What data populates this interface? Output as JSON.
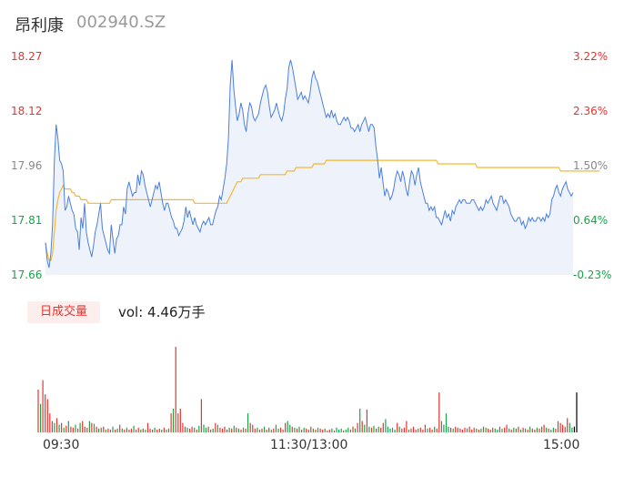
{
  "header": {
    "name": "昂利康",
    "code": "002940.SZ"
  },
  "price_axis": [
    "18.27",
    "18.12",
    "17.96",
    "17.81",
    "17.66"
  ],
  "pct_axis": [
    "3.22%",
    "2.36%",
    "1.50%",
    "0.64%",
    "-0.23%"
  ],
  "volume": {
    "badge": "日成交量",
    "label": "vol: 4.46万手"
  },
  "time_axis": [
    "09:30",
    "11:30/13:00",
    "15:00"
  ],
  "colors": {
    "up": "#e8332f",
    "down": "#1aa34a",
    "price_line": "#4a7fe0",
    "avg_line": "#f5b731",
    "area": "#eef3fb",
    "neutral": "#888888"
  },
  "chart_data": [
    {
      "type": "line",
      "xlabel": "",
      "ylabel": "",
      "ylim": [
        17.66,
        18.27
      ],
      "y2lim": [
        -0.23,
        3.22
      ],
      "grid": false,
      "x_ticks": [
        "09:30",
        "11:30/13:00",
        "15:00"
      ],
      "y_ticks": [
        18.27,
        18.12,
        17.96,
        17.81,
        17.66
      ],
      "y2_ticks": [
        "3.22%",
        "2.36%",
        "1.50%",
        "0.64%",
        "-0.23%"
      ],
      "series": [
        {
          "role": "price",
          "values": [
            17.75,
            17.7,
            17.68,
            17.72,
            17.8,
            17.98,
            18.08,
            18.04,
            17.98,
            17.97,
            17.95,
            17.84,
            17.85,
            17.88,
            17.86,
            17.84,
            17.83,
            17.79,
            17.78,
            17.73,
            17.82,
            17.79,
            17.86,
            17.78,
            17.75,
            17.73,
            17.71,
            17.74,
            17.78,
            17.8,
            17.83,
            17.86,
            17.79,
            17.77,
            17.75,
            17.73,
            17.72,
            17.8,
            17.76,
            17.72,
            17.76,
            17.77,
            17.8,
            17.8,
            17.85,
            17.83,
            17.9,
            17.92,
            17.9,
            17.88,
            17.89,
            17.89,
            17.94,
            17.91,
            17.95,
            17.94,
            17.91,
            17.89,
            17.87,
            17.85,
            17.87,
            17.89,
            17.91,
            17.9,
            17.92,
            17.89,
            17.86,
            17.84,
            17.86,
            17.86,
            17.84,
            17.82,
            17.81,
            17.79,
            17.79,
            17.77,
            17.78,
            17.79,
            17.81,
            17.85,
            17.82,
            17.84,
            17.82,
            17.8,
            17.82,
            17.8,
            17.79,
            17.78,
            17.8,
            17.81,
            17.8,
            17.81,
            17.82,
            17.8,
            17.8,
            17.82,
            17.84,
            17.85,
            17.88,
            17.87,
            17.9,
            17.93,
            17.97,
            18.04,
            18.19,
            18.26,
            18.18,
            18.13,
            18.09,
            18.11,
            18.14,
            18.12,
            18.08,
            18.06,
            18.11,
            18.14,
            18.13,
            18.1,
            18.09,
            18.1,
            18.11,
            18.14,
            18.16,
            18.18,
            18.19,
            18.17,
            18.13,
            18.1,
            18.11,
            18.12,
            18.14,
            18.12,
            18.1,
            18.09,
            18.11,
            18.15,
            18.18,
            18.24,
            18.26,
            18.24,
            18.21,
            18.18,
            18.15,
            18.16,
            18.17,
            18.15,
            18.16,
            18.15,
            18.14,
            18.17,
            18.21,
            18.23,
            18.21,
            18.2,
            18.18,
            18.16,
            18.14,
            18.12,
            18.1,
            18.11,
            18.1,
            18.12,
            18.1,
            18.11,
            18.09,
            18.08,
            18.08,
            18.09,
            18.1,
            18.09,
            18.1,
            18.09,
            18.07,
            18.07,
            18.06,
            18.07,
            18.08,
            18.06,
            18.08,
            18.09,
            18.1,
            18.08,
            18.06,
            18.08,
            18.08,
            18.07,
            18.02,
            17.98,
            17.93,
            17.96,
            17.92,
            17.88,
            17.9,
            17.89,
            17.87,
            17.88,
            17.9,
            17.93,
            17.95,
            17.94,
            17.92,
            17.95,
            17.93,
            17.9,
            17.88,
            17.92,
            17.95,
            17.94,
            17.91,
            17.94,
            17.96,
            17.92,
            17.9,
            17.88,
            17.86,
            17.86,
            17.84,
            17.85,
            17.84,
            17.85,
            17.82,
            17.82,
            17.81,
            17.8,
            17.82,
            17.84,
            17.82,
            17.83,
            17.81,
            17.84,
            17.83,
            17.85,
            17.86,
            17.87,
            17.86,
            17.87,
            17.87,
            17.86,
            17.86,
            17.86,
            17.87,
            17.87,
            17.86,
            17.85,
            17.84,
            17.85,
            17.84,
            17.85,
            17.87,
            17.86,
            17.87,
            17.88,
            17.86,
            17.85,
            17.84,
            17.86,
            17.88,
            17.88,
            17.86,
            17.87,
            17.86,
            17.85,
            17.83,
            17.82,
            17.81,
            17.81,
            17.82,
            17.82,
            17.8,
            17.81,
            17.79,
            17.8,
            17.82,
            17.81,
            17.82,
            17.81,
            17.81,
            17.82,
            17.82,
            17.81,
            17.82,
            17.81,
            17.83,
            17.82,
            17.83,
            17.87,
            17.88,
            17.9,
            17.91,
            17.89,
            17.88,
            17.9,
            17.91,
            17.92,
            17.9,
            17.89,
            17.88,
            17.89
          ],
          "color": "#4a7fe0"
        },
        {
          "role": "average",
          "values": [
            17.75,
            17.72,
            17.7,
            17.7,
            17.72,
            17.78,
            17.84,
            17.87,
            17.89,
            17.9,
            17.91,
            17.9,
            17.9,
            17.9,
            17.9,
            17.89,
            17.89,
            17.88,
            17.88,
            17.88,
            17.87,
            17.87,
            17.87,
            17.87,
            17.86,
            17.86,
            17.86,
            17.86,
            17.86,
            17.86,
            17.86,
            17.86,
            17.86,
            17.86,
            17.86,
            17.86,
            17.86,
            17.87,
            17.87,
            17.87,
            17.87,
            17.87,
            17.87,
            17.87,
            17.87,
            17.87,
            17.87,
            17.87,
            17.87,
            17.87,
            17.87,
            17.87,
            17.87,
            17.87,
            17.87,
            17.87,
            17.87,
            17.87,
            17.87,
            17.87,
            17.87,
            17.87,
            17.87,
            17.87,
            17.87,
            17.87,
            17.87,
            17.87,
            17.87,
            17.87,
            17.87,
            17.87,
            17.87,
            17.87,
            17.87,
            17.87,
            17.87,
            17.87,
            17.87,
            17.87,
            17.87,
            17.87,
            17.87,
            17.87,
            17.86,
            17.86,
            17.86,
            17.86,
            17.86,
            17.86,
            17.86,
            17.86,
            17.86,
            17.86,
            17.86,
            17.86,
            17.86,
            17.86,
            17.86,
            17.86,
            17.86,
            17.86,
            17.86,
            17.87,
            17.88,
            17.89,
            17.9,
            17.91,
            17.92,
            17.92,
            17.92,
            17.93,
            17.93,
            17.93,
            17.93,
            17.93,
            17.93,
            17.93,
            17.93,
            17.93,
            17.93,
            17.94,
            17.94,
            17.94,
            17.94,
            17.94,
            17.94,
            17.94,
            17.94,
            17.94,
            17.94,
            17.94,
            17.94,
            17.94,
            17.94,
            17.94,
            17.95,
            17.95,
            17.95,
            17.95,
            17.95,
            17.96,
            17.96,
            17.96,
            17.96,
            17.96,
            17.96,
            17.96,
            17.96,
            17.96,
            17.96,
            17.97,
            17.97,
            17.97,
            17.97,
            17.97,
            17.97,
            17.97,
            17.98,
            17.98,
            17.98,
            17.98,
            17.98,
            17.98,
            17.98,
            17.98,
            17.98,
            17.98,
            17.98,
            17.98,
            17.98,
            17.98,
            17.98,
            17.98,
            17.98,
            17.98,
            17.98,
            17.98,
            17.98,
            17.98,
            17.98,
            17.98,
            17.98,
            17.98,
            17.98,
            17.98,
            17.98,
            17.98,
            17.98,
            17.98,
            17.98,
            17.98,
            17.98,
            17.98,
            17.98,
            17.98,
            17.98,
            17.98,
            17.98,
            17.98,
            17.98,
            17.98,
            17.98,
            17.98,
            17.98,
            17.98,
            17.98,
            17.98,
            17.98,
            17.98,
            17.98,
            17.98,
            17.98,
            17.98,
            17.98,
            17.98,
            17.98,
            17.98,
            17.98,
            17.98,
            17.98,
            17.97,
            17.97,
            17.97,
            17.97,
            17.97,
            17.97,
            17.97,
            17.97,
            17.97,
            17.97,
            17.97,
            17.97,
            17.97,
            17.97,
            17.97,
            17.97,
            17.97,
            17.97,
            17.97,
            17.97,
            17.97,
            17.97,
            17.96,
            17.96,
            17.96,
            17.96,
            17.96,
            17.96,
            17.96,
            17.96,
            17.96,
            17.96,
            17.96,
            17.96,
            17.96,
            17.96,
            17.96,
            17.96,
            17.96,
            17.96,
            17.96,
            17.96,
            17.96,
            17.96,
            17.96,
            17.96,
            17.96,
            17.96,
            17.96,
            17.96,
            17.96,
            17.96,
            17.96,
            17.96,
            17.96,
            17.96,
            17.96,
            17.96,
            17.96,
            17.96,
            17.96,
            17.96,
            17.96,
            17.96,
            17.96,
            17.96,
            17.96,
            17.96,
            17.96,
            17.95,
            17.95,
            17.95,
            17.95,
            17.95,
            17.95,
            17.95,
            17.95,
            17.95,
            17.95,
            17.95,
            17.95,
            17.95,
            17.95,
            17.95,
            17.95,
            17.95,
            17.95,
            17.95,
            17.95,
            17.95,
            17.95,
            17.95
          ],
          "color": "#f5b731"
        }
      ]
    },
    {
      "type": "bar",
      "title": "日成交量",
      "values": [
        0.45,
        0.3,
        0.55,
        0.4,
        0.35,
        0.2,
        0.12,
        0.1,
        0.15,
        0.08,
        0.1,
        0.05,
        0.07,
        0.12,
        0.06,
        0.05,
        0.08,
        0.04,
        0.1,
        0.12,
        0.06,
        0.05,
        0.12,
        0.1,
        0.09,
        0.06,
        0.04,
        0.05,
        0.06,
        0.03,
        0.04,
        0.03,
        0.06,
        0.03,
        0.04,
        0.08,
        0.04,
        0.03,
        0.05,
        0.03,
        0.04,
        0.07,
        0.03,
        0.05,
        0.03,
        0.04,
        0.03,
        0.1,
        0.04,
        0.03,
        0.05,
        0.03,
        0.04,
        0.03,
        0.05,
        0.03,
        0.04,
        0.2,
        0.25,
        0.9,
        0.2,
        0.25,
        0.1,
        0.06,
        0.05,
        0.04,
        0.06,
        0.05,
        0.03,
        0.07,
        0.35,
        0.08,
        0.05,
        0.06,
        0.03,
        0.04,
        0.1,
        0.08,
        0.05,
        0.04,
        0.06,
        0.03,
        0.05,
        0.04,
        0.07,
        0.05,
        0.04,
        0.03,
        0.05,
        0.04,
        0.2,
        0.1,
        0.08,
        0.04,
        0.05,
        0.03,
        0.04,
        0.06,
        0.03,
        0.05,
        0.03,
        0.04,
        0.08,
        0.04,
        0.05,
        0.03,
        0.1,
        0.12,
        0.08,
        0.06,
        0.05,
        0.04,
        0.06,
        0.03,
        0.05,
        0.04,
        0.03,
        0.06,
        0.04,
        0.03,
        0.05,
        0.04,
        0.03,
        0.04,
        0.02,
        0.03,
        0.04,
        0.02,
        0.05,
        0.03,
        0.04,
        0.02,
        0.03,
        0.05,
        0.03,
        0.06,
        0.04,
        0.1,
        0.25,
        0.12,
        0.08,
        0.24,
        0.06,
        0.05,
        0.07,
        0.04,
        0.06,
        0.05,
        0.1,
        0.14,
        0.06,
        0.04,
        0.05,
        0.03,
        0.1,
        0.06,
        0.04,
        0.05,
        0.12,
        0.03,
        0.04,
        0.06,
        0.03,
        0.04,
        0.05,
        0.03,
        0.08,
        0.04,
        0.05,
        0.03,
        0.06,
        0.04,
        0.42,
        0.12,
        0.08,
        0.2,
        0.06,
        0.05,
        0.04,
        0.06,
        0.05,
        0.04,
        0.03,
        0.05,
        0.04,
        0.06,
        0.03,
        0.05,
        0.04,
        0.03,
        0.04,
        0.06,
        0.05,
        0.04,
        0.03,
        0.05,
        0.04,
        0.03,
        0.06,
        0.04,
        0.05,
        0.08,
        0.04,
        0.03,
        0.05,
        0.04,
        0.06,
        0.03,
        0.05,
        0.04,
        0.03,
        0.06,
        0.04,
        0.03,
        0.05,
        0.04,
        0.06,
        0.08,
        0.05,
        0.04,
        0.03,
        0.05,
        0.04,
        0.12,
        0.1,
        0.08,
        0.06,
        0.15,
        0.1,
        0.05,
        0.06,
        0.42
      ],
      "colors": [
        "up",
        "down",
        "up",
        "up",
        "up",
        "up",
        "up",
        "down",
        "up",
        "down",
        "up",
        "down",
        "up",
        "down",
        "up",
        "up",
        "down",
        "up",
        "down",
        "up",
        "up",
        "up",
        "down",
        "up",
        "down",
        "up",
        "down",
        "up",
        "up",
        "down",
        "up",
        "up",
        "down",
        "up",
        "down",
        "up",
        "down",
        "up",
        "down",
        "up",
        "up",
        "down",
        "up",
        "up",
        "down",
        "up",
        "down",
        "up",
        "up",
        "up",
        "down",
        "up",
        "up",
        "down",
        "up",
        "down",
        "up",
        "up",
        "down",
        "up",
        "up",
        "up",
        "up",
        "up",
        "down",
        "up",
        "up",
        "down",
        "up",
        "down",
        "up",
        "down",
        "down",
        "up",
        "up",
        "down",
        "up",
        "down",
        "up",
        "up",
        "up",
        "up",
        "down",
        "up",
        "down",
        "up",
        "down",
        "up",
        "down",
        "up",
        "down",
        "up",
        "up",
        "up",
        "down",
        "up",
        "up",
        "down",
        "up",
        "up",
        "down",
        "up",
        "down",
        "down",
        "up",
        "up",
        "up",
        "down",
        "down",
        "up",
        "down",
        "up",
        "down",
        "up",
        "down",
        "up",
        "up",
        "up",
        "down",
        "up",
        "down",
        "up",
        "up",
        "down",
        "up",
        "up",
        "down",
        "up",
        "down",
        "down",
        "down",
        "up",
        "down",
        "down",
        "up",
        "up",
        "down",
        "up",
        "down",
        "up",
        "down",
        "up",
        "down",
        "up",
        "down",
        "up",
        "down",
        "up",
        "up",
        "down",
        "down",
        "down",
        "down",
        "down",
        "up",
        "down",
        "up",
        "up",
        "up",
        "down",
        "up",
        "up",
        "up",
        "down",
        "up",
        "up",
        "up",
        "down",
        "up",
        "up",
        "down",
        "up",
        "up",
        "down",
        "down",
        "down",
        "down",
        "up",
        "down",
        "up",
        "up",
        "up",
        "up",
        "up",
        "down",
        "up",
        "up",
        "up",
        "down",
        "up",
        "down",
        "up",
        "down",
        "up",
        "up",
        "up",
        "down",
        "down",
        "up",
        "down",
        "up",
        "up",
        "down",
        "up",
        "down",
        "up",
        "up",
        "down",
        "up",
        "down",
        "up",
        "down",
        "up",
        "up",
        "down",
        "up",
        "up",
        "up",
        "down",
        "up",
        "down",
        "down",
        "up",
        "up",
        "up",
        "up",
        "up",
        "up",
        "down",
        "down"
      ]
    }
  ]
}
